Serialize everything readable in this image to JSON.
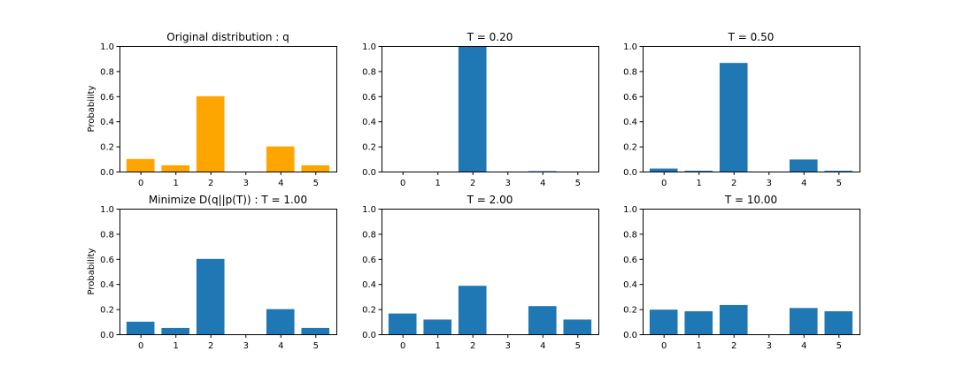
{
  "chart_data": [
    {
      "type": "bar",
      "title": "Original distribution : q",
      "ylabel": "Probability",
      "xlabel": "",
      "categories": [
        "0",
        "1",
        "2",
        "3",
        "4",
        "5"
      ],
      "values": [
        0.1,
        0.05,
        0.6,
        0.0,
        0.2,
        0.05
      ],
      "ylim": [
        0,
        1
      ],
      "yticks": [
        "0.0",
        "0.2",
        "0.4",
        "0.6",
        "0.8",
        "1.0"
      ],
      "color": "#ffa500"
    },
    {
      "type": "bar",
      "title": "T = 0.20",
      "ylabel": "",
      "xlabel": "",
      "categories": [
        "0",
        "1",
        "2",
        "3",
        "4",
        "5"
      ],
      "values": [
        0.0,
        0.0,
        0.999,
        0.0,
        0.003,
        0.0
      ],
      "ylim": [
        0,
        1
      ],
      "yticks": [
        "0.0",
        "0.2",
        "0.4",
        "0.6",
        "0.8",
        "1.0"
      ],
      "color": "#1f77b4"
    },
    {
      "type": "bar",
      "title": "T = 0.50",
      "ylabel": "",
      "xlabel": "",
      "categories": [
        "0",
        "1",
        "2",
        "3",
        "4",
        "5"
      ],
      "values": [
        0.024,
        0.006,
        0.865,
        0.0,
        0.096,
        0.006
      ],
      "ylim": [
        0,
        1
      ],
      "yticks": [
        "0.0",
        "0.2",
        "0.4",
        "0.6",
        "0.8",
        "1.0"
      ],
      "color": "#1f77b4"
    },
    {
      "type": "bar",
      "title": "Minimize D(q||p(T)) : T = 1.00",
      "ylabel": "Probability",
      "xlabel": "",
      "categories": [
        "0",
        "1",
        "2",
        "3",
        "4",
        "5"
      ],
      "values": [
        0.1,
        0.05,
        0.6,
        0.0,
        0.2,
        0.05
      ],
      "ylim": [
        0,
        1
      ],
      "yticks": [
        "0.0",
        "0.2",
        "0.4",
        "0.6",
        "0.8",
        "1.0"
      ],
      "color": "#1f77b4"
    },
    {
      "type": "bar",
      "title": "T = 2.00",
      "ylabel": "",
      "xlabel": "",
      "categories": [
        "0",
        "1",
        "2",
        "3",
        "4",
        "5"
      ],
      "values": [
        0.165,
        0.117,
        0.386,
        0.0,
        0.224,
        0.117
      ],
      "ylim": [
        0,
        1
      ],
      "yticks": [
        "0.0",
        "0.2",
        "0.4",
        "0.6",
        "0.8",
        "1.0"
      ],
      "color": "#1f77b4"
    },
    {
      "type": "bar",
      "title": "T = 10.00",
      "ylabel": "",
      "xlabel": "",
      "categories": [
        "0",
        "1",
        "2",
        "3",
        "4",
        "5"
      ],
      "values": [
        0.196,
        0.183,
        0.233,
        0.0,
        0.209,
        0.183
      ],
      "ylim": [
        0,
        1
      ],
      "yticks": [
        "0.0",
        "0.2",
        "0.4",
        "0.6",
        "0.8",
        "1.0"
      ],
      "color": "#1f77b4"
    }
  ]
}
